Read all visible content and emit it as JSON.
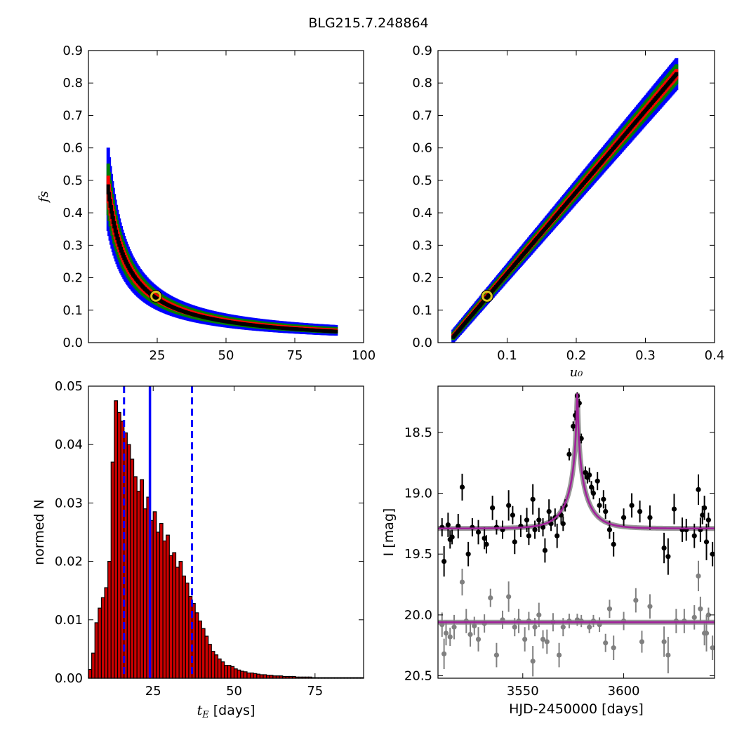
{
  "figure": {
    "title": "BLG215.7.248864",
    "colors": {
      "blue": "#0000ff",
      "green": "#007f00",
      "red": "#ff0000",
      "black": "#000000",
      "model": "#a0209a",
      "data_gray": "#808080",
      "marker_ring": "#d7c21a",
      "bar_fill": "#cc0000"
    }
  },
  "chart_data": [
    {
      "id": "fs_vs_tE",
      "type": "heatmap",
      "xlabel": "",
      "ylabel": "f_s",
      "xlim": [
        0,
        100
      ],
      "ylim": [
        0,
        0.9
      ],
      "xticks": [
        25,
        50,
        75,
        100
      ],
      "yticks": [
        0.0,
        0.1,
        0.2,
        0.3,
        0.4,
        0.5,
        0.6,
        0.7,
        0.8,
        0.9
      ],
      "curve": "fs ≈ 3.4 / tE",
      "tE_range": [
        7,
        90
      ],
      "confidence_levels": [
        "blue",
        "green",
        "red",
        "black"
      ],
      "best_fit_marker": {
        "x": 24.5,
        "y": 0.143
      }
    },
    {
      "id": "fs_vs_u0",
      "type": "heatmap",
      "xlabel": "u_0",
      "ylabel": "",
      "xlim": [
        0,
        0.4
      ],
      "ylim": [
        0,
        0.9
      ],
      "xticks": [
        0.1,
        0.2,
        0.3,
        0.4
      ],
      "yticks": [
        0.0,
        0.1,
        0.2,
        0.3,
        0.4,
        0.5,
        0.6,
        0.7,
        0.8,
        0.9
      ],
      "curve": "fs ≈ 2.5 * u0 - 0.035",
      "u0_range": [
        0.02,
        0.345
      ],
      "confidence_levels": [
        "blue",
        "green",
        "red",
        "black"
      ],
      "best_fit_marker": {
        "x": 0.071,
        "y": 0.143
      }
    },
    {
      "id": "tE_histogram",
      "type": "bar",
      "xlabel": "t_E [days]",
      "ylabel": "normed N",
      "xlim": [
        5,
        90
      ],
      "ylim": [
        0,
        0.05
      ],
      "xticks": [
        25,
        50,
        75
      ],
      "yticks": [
        0.0,
        0.01,
        0.02,
        0.03,
        0.04,
        0.05
      ],
      "ytick_labels": [
        "0.00",
        "0.01",
        "0.02",
        "0.03",
        "0.04",
        "0.05"
      ],
      "bin_start": 5,
      "bin_width": 1,
      "values": [
        0.0015,
        0.0043,
        0.0095,
        0.012,
        0.0138,
        0.0155,
        0.02,
        0.037,
        0.0475,
        0.0455,
        0.044,
        0.042,
        0.04,
        0.0375,
        0.0345,
        0.032,
        0.034,
        0.029,
        0.031,
        0.027,
        0.0285,
        0.025,
        0.0265,
        0.0235,
        0.0245,
        0.021,
        0.0215,
        0.019,
        0.02,
        0.0175,
        0.0163,
        0.014,
        0.0128,
        0.0112,
        0.0098,
        0.0085,
        0.0072,
        0.0058,
        0.0046,
        0.004,
        0.0033,
        0.0028,
        0.0022,
        0.0022,
        0.002,
        0.0016,
        0.0014,
        0.0012,
        0.0011,
        0.0009,
        0.0009,
        0.0008,
        0.0007,
        0.0006,
        0.0006,
        0.0005,
        0.0005,
        0.0004,
        0.0004,
        0.0004,
        0.0003,
        0.0003,
        0.0003,
        0.0003,
        0.0002,
        0.0002,
        0.0002,
        0.0002,
        0.0002,
        0.0001,
        0.0001,
        0.0001,
        0.0001,
        0.0001,
        0.0001,
        0.0001,
        0.0001,
        0.0001,
        0.0001,
        0.0001,
        0.0001,
        0.0001,
        0.0001,
        0.0001,
        0.0001
      ],
      "median_line": 24,
      "dashed_lines": [
        16,
        37
      ]
    },
    {
      "id": "lightcurve",
      "type": "scatter",
      "xlabel": "HJD-2450000 [days]",
      "ylabel": "I [mag]",
      "xlim": [
        3508,
        3645
      ],
      "ylim": [
        20.52,
        18.12
      ],
      "xticks": [
        3550,
        3600
      ],
      "yticks": [
        18.5,
        19.0,
        19.5,
        20.0,
        20.5
      ],
      "ytick_labels": [
        "18.5",
        "19.0",
        "19.5",
        "20.0",
        "20.5"
      ],
      "model": {
        "t0": 3577,
        "baseline_mag": 19.29,
        "peak_mag": 18.18,
        "residual_baseline_mag": 20.06
      },
      "series": [
        {
          "points": [
            [
              3510,
              19.28,
              0.15
            ],
            [
              3511,
              19.56,
              0.25
            ],
            [
              3513,
              19.26,
              0.2
            ],
            [
              3514,
              19.38,
              0.15
            ],
            [
              3515,
              19.36,
              0.12
            ],
            [
              3518,
              19.27,
              0.2
            ],
            [
              3520,
              18.95,
              0.22
            ],
            [
              3523,
              19.5,
              0.2
            ],
            [
              3525,
              19.28,
              0.15
            ],
            [
              3528,
              19.32,
              0.2
            ],
            [
              3531,
              19.37,
              0.18
            ],
            [
              3532,
              19.42,
              0.15
            ],
            [
              3535,
              19.12,
              0.2
            ],
            [
              3537,
              19.28,
              0.12
            ],
            [
              3540,
              19.3,
              0.15
            ],
            [
              3543,
              19.1,
              0.25
            ],
            [
              3545,
              19.18,
              0.15
            ],
            [
              3546,
              19.4,
              0.2
            ],
            [
              3549,
              19.27,
              0.18
            ],
            [
              3552,
              19.22,
              0.2
            ],
            [
              3553,
              19.35,
              0.15
            ],
            [
              3555,
              19.05,
              0.25
            ],
            [
              3556,
              19.3,
              0.15
            ],
            [
              3558,
              19.22,
              0.2
            ],
            [
              3560,
              19.28,
              0.15
            ],
            [
              3561,
              19.47,
              0.2
            ],
            [
              3563,
              19.15,
              0.2
            ],
            [
              3564,
              19.25,
              0.12
            ],
            [
              3566,
              19.2,
              0.15
            ],
            [
              3567,
              19.35,
              0.2
            ],
            [
              3569,
              19.18,
              0.15
            ],
            [
              3570,
              19.25,
              0.12
            ],
            [
              3571,
              19.1,
              0.1
            ],
            [
              3573,
              18.68,
              0.1
            ],
            [
              3575,
              18.45,
              0.08
            ],
            [
              3576,
              18.36,
              0.08
            ],
            [
              3577,
              18.2,
              0.06
            ],
            [
              3578,
              18.26,
              0.07
            ],
            [
              3579,
              18.55,
              0.08
            ],
            [
              3581,
              18.83,
              0.1
            ],
            [
              3582,
              18.87,
              0.1
            ],
            [
              3583,
              18.85,
              0.12
            ],
            [
              3584,
              18.95,
              0.1
            ],
            [
              3585,
              19.0,
              0.1
            ],
            [
              3587,
              18.9,
              0.15
            ],
            [
              3588,
              19.1,
              0.12
            ],
            [
              3590,
              19.05,
              0.15
            ],
            [
              3591,
              19.15,
              0.12
            ],
            [
              3593,
              19.3,
              0.15
            ],
            [
              3595,
              19.42,
              0.2
            ],
            [
              3600,
              19.2,
              0.15
            ],
            [
              3604,
              19.1,
              0.2
            ],
            [
              3608,
              19.15,
              0.18
            ],
            [
              3613,
              19.2,
              0.2
            ],
            [
              3620,
              19.45,
              0.25
            ],
            [
              3622,
              19.52,
              0.3
            ],
            [
              3625,
              19.13,
              0.25
            ],
            [
              3629,
              19.3,
              0.2
            ],
            [
              3631,
              19.3,
              0.18
            ],
            [
              3635,
              19.35,
              0.2
            ],
            [
              3637,
              18.97,
              0.25
            ],
            [
              3638,
              19.3,
              0.2
            ],
            [
              3639,
              19.18,
              0.15
            ],
            [
              3640,
              19.12,
              0.2
            ],
            [
              3641,
              19.4,
              0.3
            ],
            [
              3642,
              19.22,
              0.12
            ],
            [
              3644,
              19.5,
              0.2
            ]
          ]
        },
        {
          "points": [
            [
              3510,
              20.08,
              0.2
            ],
            [
              3511,
              20.32,
              0.25
            ],
            [
              3512,
              20.15,
              0.2
            ],
            [
              3514,
              20.18,
              0.15
            ],
            [
              3516,
              20.1,
              0.2
            ],
            [
              3520,
              19.73,
              0.22
            ],
            [
              3522,
              20.05,
              0.2
            ],
            [
              3524,
              20.16,
              0.2
            ],
            [
              3526,
              20.09,
              0.15
            ],
            [
              3528,
              20.2,
              0.2
            ],
            [
              3531,
              20.07,
              0.15
            ],
            [
              3534,
              19.86,
              0.15
            ],
            [
              3537,
              20.33,
              0.2
            ],
            [
              3540,
              20.04,
              0.15
            ],
            [
              3543,
              19.85,
              0.25
            ],
            [
              3546,
              20.1,
              0.15
            ],
            [
              3548,
              20.05,
              0.2
            ],
            [
              3551,
              20.2,
              0.2
            ],
            [
              3553,
              20.05,
              0.15
            ],
            [
              3555,
              20.38,
              0.25
            ],
            [
              3556,
              20.1,
              0.15
            ],
            [
              3558,
              20.0,
              0.2
            ],
            [
              3560,
              20.2,
              0.15
            ],
            [
              3562,
              20.22,
              0.2
            ],
            [
              3565,
              20.06,
              0.15
            ],
            [
              3568,
              20.33,
              0.2
            ],
            [
              3570,
              20.1,
              0.15
            ],
            [
              3573,
              20.05,
              0.12
            ],
            [
              3577,
              20.04,
              0.1
            ],
            [
              3579,
              20.05,
              0.1
            ],
            [
              3583,
              20.1,
              0.1
            ],
            [
              3585,
              20.05,
              0.1
            ],
            [
              3588,
              20.08,
              0.12
            ],
            [
              3591,
              20.23,
              0.15
            ],
            [
              3593,
              19.95,
              0.15
            ],
            [
              3595,
              20.27,
              0.2
            ],
            [
              3600,
              20.05,
              0.15
            ],
            [
              3606,
              19.88,
              0.2
            ],
            [
              3609,
              20.22,
              0.18
            ],
            [
              3613,
              19.93,
              0.2
            ],
            [
              3620,
              20.22,
              0.25
            ],
            [
              3622,
              20.33,
              0.3
            ],
            [
              3626,
              20.05,
              0.2
            ],
            [
              3630,
              20.05,
              0.2
            ],
            [
              3635,
              20.02,
              0.2
            ],
            [
              3637,
              19.68,
              0.25
            ],
            [
              3638,
              19.95,
              0.2
            ],
            [
              3640,
              20.15,
              0.2
            ],
            [
              3641,
              20.15,
              0.3
            ],
            [
              3642,
              20.0,
              0.12
            ],
            [
              3644,
              20.27,
              0.2
            ]
          ]
        }
      ]
    }
  ]
}
